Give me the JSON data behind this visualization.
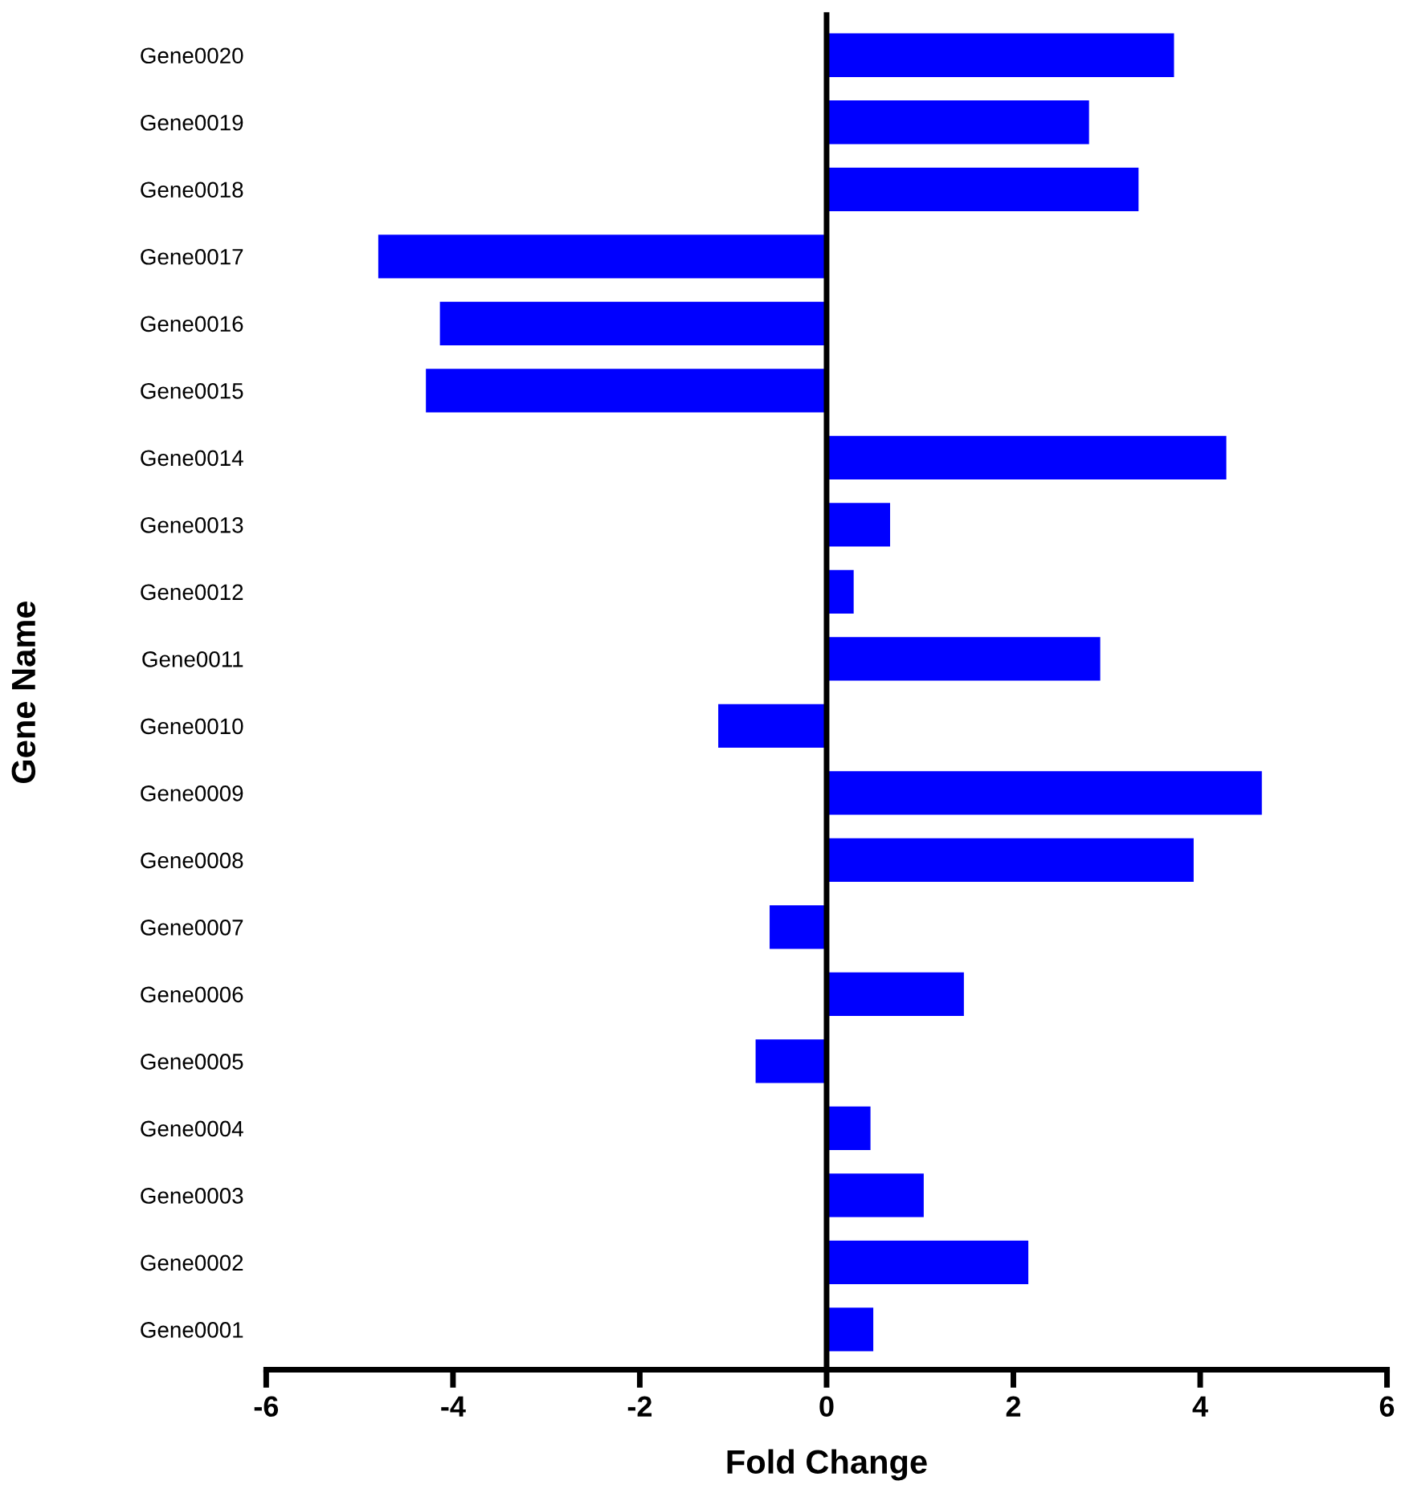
{
  "chart_data": {
    "type": "bar",
    "orientation": "horizontal",
    "xlabel": "Fold Change",
    "ylabel": "Gene Name",
    "categories": [
      "Gene0020",
      "Gene0019",
      "Gene0018",
      "Gene0017",
      "Gene0016",
      "Gene0015",
      "Gene0014",
      "Gene0013",
      "Gene0012",
      "Gene0011",
      "Gene0010",
      "Gene0009",
      "Gene0008",
      "Gene0007",
      "Gene0006",
      "Gene0005",
      "Gene0004",
      "Gene0003",
      "Gene0002",
      "Gene0001"
    ],
    "values": [
      3.72,
      2.81,
      3.34,
      -4.8,
      -4.14,
      -4.29,
      4.28,
      0.68,
      0.29,
      2.93,
      -1.16,
      4.66,
      3.93,
      -0.61,
      1.47,
      -0.76,
      0.47,
      1.04,
      2.16,
      0.5
    ],
    "color": "#0000ff",
    "xlim": [
      -6,
      6
    ],
    "xticks": [
      -6,
      -4,
      -2,
      0,
      2,
      4,
      6
    ]
  }
}
